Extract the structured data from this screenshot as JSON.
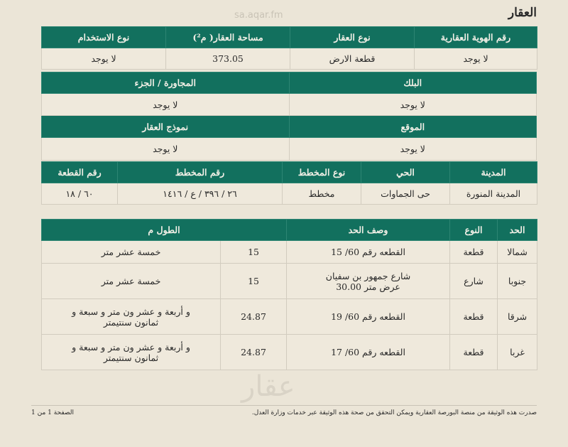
{
  "title": "العقار",
  "watermark": {
    "logo": "عقار",
    "url": "sa.aqar.fm"
  },
  "property": {
    "row1": {
      "headers": [
        "رقم الهوية العقارية",
        "نوع العقار",
        "مساحة العقار( م²)",
        "نوع الاستخدام"
      ],
      "values": [
        "لا يوجد",
        "قطعة الارض",
        "373.05",
        "لا يوجد"
      ]
    },
    "row2": {
      "headers": [
        "البلك",
        "المجاورة / الجزء"
      ],
      "values": [
        "لا يوجد",
        "لا يوجد"
      ]
    },
    "row3": {
      "headers": [
        "الموقع",
        "نموذج العقار"
      ],
      "values": [
        "لا يوجد",
        "لا يوجد"
      ]
    },
    "row4": {
      "headers": [
        "المدينة",
        "الحي",
        "نوع المخطط",
        "رقم المخطط",
        "رقم القطعة"
      ],
      "values": [
        "المدينة المنورة",
        "حى الجماوات",
        "مخطط",
        "٢٦ / ٣٩٦ / ع / ١٤١٦",
        "٦٠ / ١٨"
      ]
    }
  },
  "boundaries": {
    "headers": [
      "الحد",
      "النوع",
      "وصف الحد",
      "الطول م"
    ],
    "rows": [
      [
        "شمالا",
        "قطعة",
        "القطعه رقم 60/ 15",
        "15",
        "خمسة عشر متر"
      ],
      [
        "جنوبا",
        "شارع",
        "شارع جمهور بن سفيان عرض متر 30.00",
        "15",
        "خمسة عشر متر"
      ],
      [
        "شرقا",
        "قطعة",
        "القطعه رقم 60/ 19",
        "24.87",
        "و أربعة و عشر ون متر و سبعة و ثمانون سنتيمتر"
      ],
      [
        "غربا",
        "قطعة",
        "القطعه رقم 60/ 17",
        "24.87",
        "و أربعة و عشر ون متر و سبعة و ثمانون سنتيمتر"
      ]
    ]
  },
  "footer": {
    "note": "صدرت هذه الوثيقة من منصة البورصة العقارية ويمكن التحقق من صحة هذه الوثيقة عبر خدمات وزارة العدل.",
    "page": "الصفحة 1 من 1"
  }
}
